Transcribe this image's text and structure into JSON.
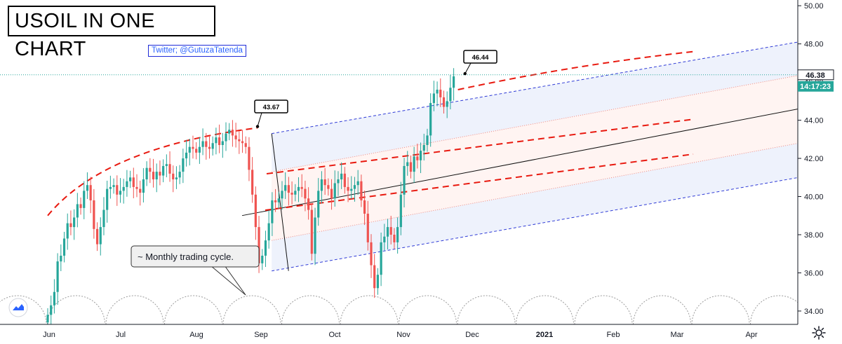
{
  "header": {
    "title": "USOIL IN ONE CHART",
    "twitter": "Twitter; @GutuzaTatenda"
  },
  "chart_data": {
    "type": "candlestick",
    "symbol": "USOIL",
    "timeframe": "daily",
    "x_axis": {
      "labels": [
        "Jun",
        "Jul",
        "Aug",
        "Sep",
        "Oct",
        "Nov",
        "Dec",
        "2021",
        "Feb",
        "Mar",
        "Apr"
      ]
    },
    "y_axis": {
      "min": 33.3,
      "max": 50.3,
      "ticks": [
        "50.00",
        "48.00",
        "46.00",
        "44.00",
        "42.00",
        "40.00",
        "38.00",
        "36.00",
        "34.00"
      ]
    },
    "price_series": {
      "start_date": "2020-06-01",
      "closes": [
        33.8,
        34.3,
        35.0,
        36.6,
        36.9,
        37.8,
        38.6,
        38.4,
        38.9,
        39.6,
        39.4,
        40.3,
        40.6,
        39.8,
        38.3,
        37.5,
        38.4,
        39.3,
        40.4,
        40.5,
        40.6,
        40.1,
        40.3,
        40.5,
        40.8,
        41.0,
        40.5,
        40.4,
        40.2,
        40.9,
        41.5,
        41.3,
        40.9,
        41.3,
        41.1,
        41.6,
        41.7,
        41.2,
        40.9,
        41.0,
        41.3,
        42.0,
        42.3,
        42.6,
        42.5,
        42.3,
        42.6,
        42.9,
        42.6,
        42.5,
        42.8,
        43.1,
        42.7,
        42.9,
        43.3,
        43.5,
        43.2,
        43.0,
        42.9,
        42.8,
        42.6,
        41.4,
        40.1,
        38.4,
        36.5,
        36.9,
        37.7,
        38.6,
        39.8,
        39.7,
        39.9,
        40.3,
        40.6,
        40.2,
        40.1,
        40.3,
        40.5,
        40.4,
        39.9,
        39.3,
        37.0,
        38.9,
        40.3,
        40.9,
        40.6,
        40.4,
        39.9,
        40.7,
        40.9,
        41.2,
        40.5,
        40.3,
        40.4,
        40.6,
        40.8,
        39.8,
        39.1,
        37.6,
        36.4,
        35.2,
        35.9,
        37.6,
        37.9,
        38.4,
        38.0,
        37.6,
        38.4,
        40.1,
        41.6,
        41.8,
        41.3,
        42.1,
        41.9,
        42.4,
        42.7,
        43.2,
        44.9,
        45.4,
        45.6,
        45.2,
        44.7,
        45.0,
        45.7,
        46.3
      ]
    },
    "channel": {
      "start_date": "2020-09-04",
      "end_date": "2021-04-20",
      "upper_start": 43.3,
      "upper_end": 48.2,
      "lower_start": 36.1,
      "lower_end": 41.1,
      "midline_start": 39.3,
      "midline_end": 44.7
    },
    "trend_curve": {
      "start_date": "2020-06-01",
      "start_price": 39.0,
      "mid_date": "2020-08-29",
      "mid_price": 43.6,
      "end_date": "2021-03-02",
      "end_price": 47.6
    },
    "price_line": 46.38,
    "annotations": [
      {
        "text": "43.67",
        "price": 43.67,
        "date": "2020-08-29"
      },
      {
        "text": "46.44",
        "price": 46.44,
        "date": "2020-11-25"
      },
      {
        "text": "~ Monthly trading cycle."
      }
    ],
    "price_label": "46.38",
    "countdown_label": "14:17:23"
  },
  "colors": {
    "up": "#26a69a",
    "down": "#ef5350",
    "channel_fill": "#eef2fc",
    "inner_fill": "#fff4f2",
    "channel_line": "#2f3bd6",
    "red_dash": "#e8190f",
    "label_bg": "#26a69a"
  }
}
